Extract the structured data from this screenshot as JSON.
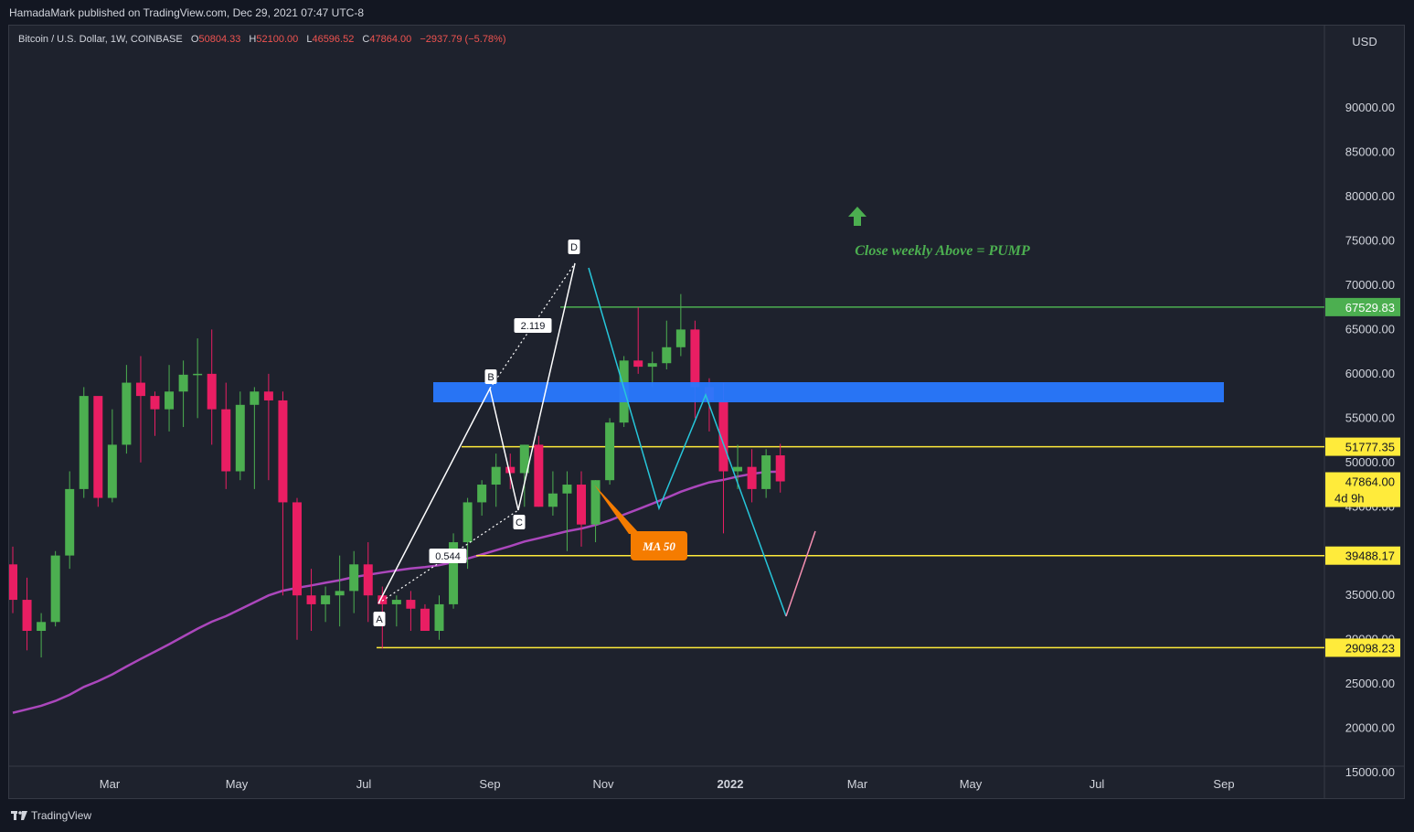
{
  "header": {
    "published": "HamadaMark published on TradingView.com, Dec 29, 2021 07:47 UTC-8"
  },
  "symbol": {
    "name": "Bitcoin / U.S. Dollar, 1W, COINBASE",
    "open_label": "O",
    "open": "50804.33",
    "high_label": "H",
    "high": "52100.00",
    "low_label": "L",
    "low": "46596.52",
    "close_label": "C",
    "close": "47864.00",
    "change": "−2937.79 (−5.78%)"
  },
  "footer": {
    "logo_text": "TradingView"
  },
  "colors": {
    "up": "#26a69a",
    "up_candle": "#4caf50",
    "down": "#e91e63",
    "ma": "#ab47bc",
    "blue_zone": "#2979ff",
    "yellow": "#ffeb3b",
    "green_line": "#4caf50",
    "cyan": "#26c6da",
    "orange": "#f57c00"
  },
  "chart_data": {
    "type": "candlestick",
    "currency": "USD",
    "y_ticks": [
      15000,
      20000,
      25000,
      30000,
      35000,
      40000,
      45000,
      50000,
      55000,
      60000,
      65000,
      70000,
      75000,
      80000,
      85000,
      90000
    ],
    "ylim": [
      10000,
      93000
    ],
    "x_ticks": [
      "Mar",
      "May",
      "Jul",
      "Sep",
      "Nov",
      "2022",
      "Mar",
      "May",
      "Jul",
      "Sep"
    ],
    "price_labels": [
      {
        "value": "67529.83",
        "price": 67529.83,
        "color": "#4caf50"
      },
      {
        "value": "51777.35",
        "price": 51777.35,
        "color": "#ffeb3b"
      },
      {
        "value": "47864.00",
        "price": 47864.0,
        "color": "#ffeb3b",
        "sub": "4d 9h"
      },
      {
        "value": "39488.17",
        "price": 39488.17,
        "color": "#ffeb3b"
      },
      {
        "value": "29098.23",
        "price": 29098.23,
        "color": "#ffeb3b"
      }
    ],
    "candles": [
      [
        38500,
        40500,
        33000,
        34500
      ],
      [
        34500,
        37000,
        28800,
        31000
      ],
      [
        31000,
        33000,
        28000,
        32000
      ],
      [
        32000,
        40000,
        31500,
        39500
      ],
      [
        39500,
        49000,
        38000,
        47000
      ],
      [
        47000,
        58500,
        46000,
        57500
      ],
      [
        57500,
        57000,
        45000,
        46000
      ],
      [
        46000,
        56000,
        45500,
        52000
      ],
      [
        52000,
        61000,
        51000,
        59000
      ],
      [
        59000,
        62000,
        50000,
        57500
      ],
      [
        57500,
        58000,
        53000,
        56000
      ],
      [
        56000,
        61000,
        53500,
        58000
      ],
      [
        58000,
        61500,
        54000,
        59900
      ],
      [
        59900,
        64000,
        55000,
        60000
      ],
      [
        60000,
        65000,
        52000,
        56000
      ],
      [
        56000,
        59000,
        47000,
        49000
      ],
      [
        49000,
        58000,
        48000,
        56500
      ],
      [
        56500,
        58500,
        47000,
        58000
      ],
      [
        58000,
        60000,
        48000,
        57000
      ],
      [
        57000,
        58000,
        35000,
        45500
      ],
      [
        45500,
        46000,
        30000,
        35000
      ],
      [
        35000,
        38000,
        31000,
        34000
      ],
      [
        34000,
        36000,
        32000,
        35000
      ],
      [
        35000,
        39500,
        31500,
        35500
      ],
      [
        35500,
        40000,
        33000,
        38500
      ],
      [
        38500,
        41000,
        32000,
        35000
      ],
      [
        35000,
        36000,
        29000,
        34000
      ],
      [
        34000,
        35000,
        31500,
        34500
      ],
      [
        34500,
        35500,
        31000,
        33500
      ],
      [
        33500,
        34000,
        31000,
        31000
      ],
      [
        31000,
        35000,
        30000,
        34000
      ],
      [
        34000,
        42000,
        33500,
        41000
      ],
      [
        41000,
        46000,
        38000,
        45500
      ],
      [
        45500,
        48000,
        44000,
        47500
      ],
      [
        47500,
        51000,
        45000,
        49500
      ],
      [
        49500,
        51000,
        47000,
        48800
      ],
      [
        48800,
        52000,
        45000,
        52000
      ],
      [
        52000,
        53000,
        45000,
        45000
      ],
      [
        45000,
        49000,
        44000,
        46500
      ],
      [
        46500,
        49000,
        40000,
        47500
      ],
      [
        47500,
        49000,
        40500,
        43000
      ],
      [
        43000,
        48000,
        41000,
        48000
      ],
      [
        48000,
        55000,
        47500,
        54500
      ],
      [
        54500,
        62000,
        54000,
        61500
      ],
      [
        61500,
        67500,
        60000,
        60800
      ],
      [
        60800,
        62500,
        58500,
        61200
      ],
      [
        61200,
        66000,
        60500,
        63000
      ],
      [
        63000,
        69000,
        62000,
        65000
      ],
      [
        65000,
        66000,
        55000,
        58500
      ],
      [
        58500,
        59500,
        53500,
        57000
      ],
      [
        57000,
        59000,
        42000,
        49000
      ],
      [
        49000,
        52000,
        47000,
        49500
      ],
      [
        49500,
        51500,
        45500,
        47000
      ],
      [
        47000,
        51500,
        46000,
        50800
      ],
      [
        50800,
        52100,
        46600,
        47864
      ]
    ],
    "ma50_label": "MA 50",
    "annotations": [
      {
        "text": "Close weekly Above = PUMP",
        "color": "#4caf50"
      },
      {
        "text": "MA 50",
        "color": "#f57c00"
      }
    ],
    "pattern_points": [
      "A",
      "B",
      "C",
      "D"
    ],
    "pattern_ratios": [
      "2.119",
      "0.544"
    ]
  }
}
